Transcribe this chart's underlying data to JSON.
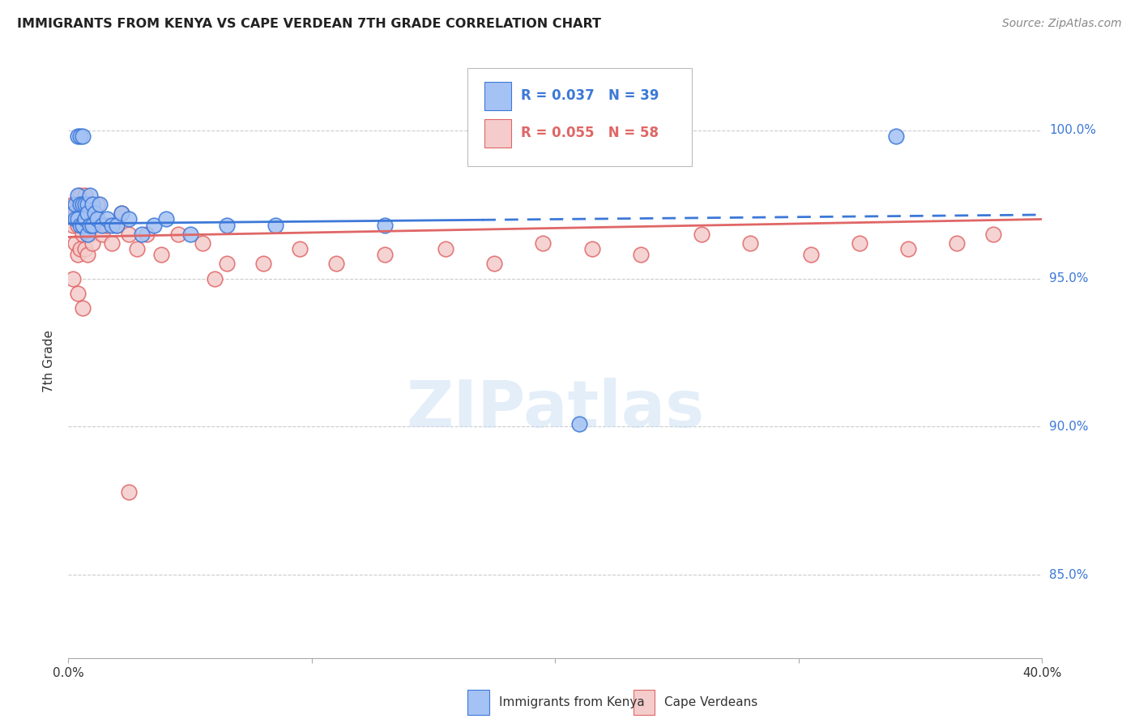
{
  "title": "IMMIGRANTS FROM KENYA VS CAPE VERDEAN 7TH GRADE CORRELATION CHART",
  "source": "Source: ZipAtlas.com",
  "ylabel": "7th Grade",
  "yticks": [
    0.85,
    0.9,
    0.95,
    1.0
  ],
  "ytick_labels": [
    "85.0%",
    "90.0%",
    "95.0%",
    "100.0%"
  ],
  "xmin": 0.0,
  "xmax": 0.4,
  "ymin": 0.822,
  "ymax": 1.022,
  "legend_r1": "R = 0.037",
  "legend_n1": "N = 39",
  "legend_r2": "R = 0.055",
  "legend_n2": "N = 58",
  "legend_label1": "Immigrants from Kenya",
  "legend_label2": "Cape Verdeans",
  "blue_fill": "#a4c2f4",
  "blue_edge": "#3c78d8",
  "pink_fill": "#f4cccc",
  "pink_edge": "#e06666",
  "trendline_blue": "#3c78d8",
  "trendline_pink": "#e06666",
  "grid_color": "#cccccc",
  "kenya_x": [
    0.002,
    0.003,
    0.003,
    0.004,
    0.004,
    0.004,
    0.005,
    0.005,
    0.005,
    0.006,
    0.006,
    0.006,
    0.007,
    0.007,
    0.008,
    0.008,
    0.008,
    0.009,
    0.009,
    0.01,
    0.01,
    0.011,
    0.012,
    0.013,
    0.014,
    0.016,
    0.018,
    0.02,
    0.022,
    0.025,
    0.03,
    0.035,
    0.04,
    0.05,
    0.065,
    0.085,
    0.13,
    0.21,
    0.34
  ],
  "kenya_y": [
    0.972,
    0.975,
    0.97,
    0.998,
    0.978,
    0.97,
    0.998,
    0.975,
    0.968,
    0.998,
    0.975,
    0.968,
    0.975,
    0.97,
    0.975,
    0.972,
    0.965,
    0.978,
    0.968,
    0.975,
    0.968,
    0.972,
    0.97,
    0.975,
    0.968,
    0.97,
    0.968,
    0.968,
    0.972,
    0.97,
    0.965,
    0.968,
    0.97,
    0.965,
    0.968,
    0.968,
    0.968,
    0.901,
    0.998
  ],
  "cv_x": [
    0.002,
    0.002,
    0.003,
    0.003,
    0.004,
    0.004,
    0.004,
    0.005,
    0.005,
    0.005,
    0.006,
    0.006,
    0.007,
    0.007,
    0.007,
    0.008,
    0.008,
    0.008,
    0.009,
    0.009,
    0.01,
    0.01,
    0.011,
    0.012,
    0.013,
    0.014,
    0.016,
    0.018,
    0.02,
    0.022,
    0.025,
    0.028,
    0.032,
    0.038,
    0.045,
    0.055,
    0.065,
    0.08,
    0.095,
    0.11,
    0.13,
    0.155,
    0.175,
    0.195,
    0.215,
    0.235,
    0.26,
    0.28,
    0.305,
    0.325,
    0.345,
    0.365,
    0.38,
    0.002,
    0.004,
    0.006,
    0.025,
    0.06
  ],
  "cv_y": [
    0.975,
    0.968,
    0.972,
    0.962,
    0.975,
    0.968,
    0.958,
    0.978,
    0.97,
    0.96,
    0.975,
    0.965,
    0.978,
    0.97,
    0.96,
    0.975,
    0.968,
    0.958,
    0.975,
    0.965,
    0.972,
    0.962,
    0.968,
    0.975,
    0.968,
    0.965,
    0.968,
    0.962,
    0.968,
    0.972,
    0.965,
    0.96,
    0.965,
    0.958,
    0.965,
    0.962,
    0.955,
    0.955,
    0.96,
    0.955,
    0.958,
    0.96,
    0.955,
    0.962,
    0.96,
    0.958,
    0.965,
    0.962,
    0.958,
    0.962,
    0.96,
    0.962,
    0.965,
    0.95,
    0.945,
    0.94,
    0.878,
    0.95
  ],
  "trendblue_x0": 0.0,
  "trendblue_y0": 0.9685,
  "trendblue_x1": 0.4,
  "trendblue_y1": 0.9715,
  "trendblue_solid_end": 0.17,
  "trendpink_x0": 0.0,
  "trendpink_y0": 0.964,
  "trendpink_x1": 0.4,
  "trendpink_y1": 0.97
}
